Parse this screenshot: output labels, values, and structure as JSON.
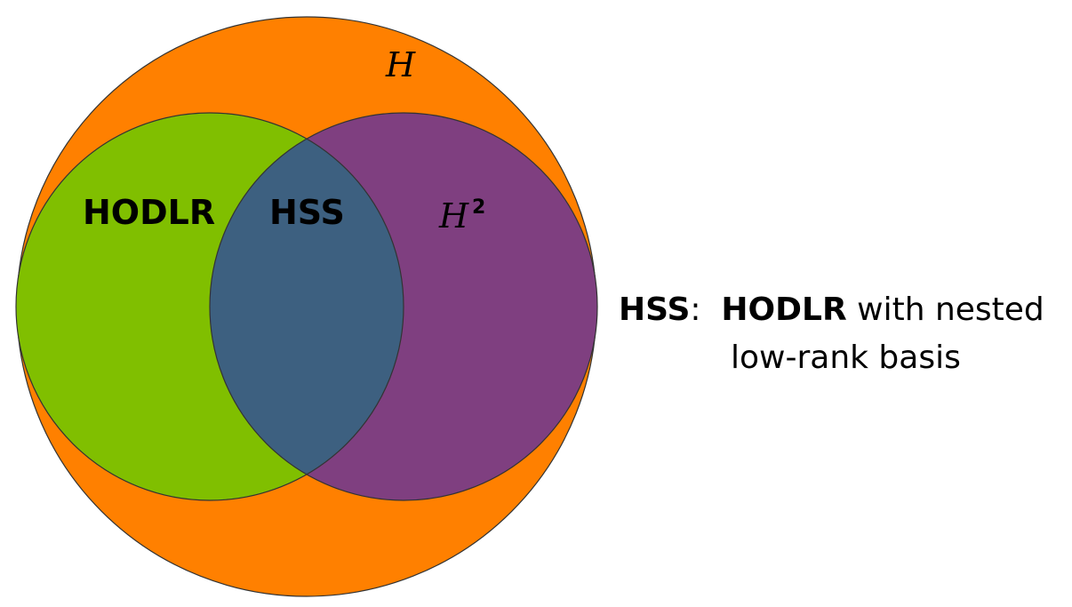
{
  "diagram": {
    "colors": {
      "outer_set": "#FF8000",
      "hodlr_set": "#80BF00",
      "h2_set": "#7F3F80",
      "overlap": "#3D6080",
      "outline": "#333333"
    },
    "labels": {
      "outer": "H",
      "hodlr": "HODLR",
      "hss": "HSS",
      "h2_base": "H",
      "h2_sup": "2"
    }
  },
  "caption": {
    "term": "HSS",
    "colon": ":",
    "subject": "HODLR",
    "rest_line1": " with nested",
    "line2": "low-rank basis"
  }
}
